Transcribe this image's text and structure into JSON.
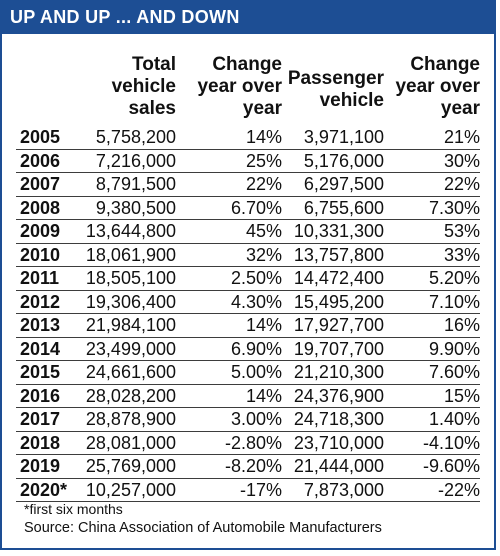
{
  "banner": {
    "title": "UP AND UP ... AND DOWN"
  },
  "colors": {
    "banner": "#1d4e94",
    "border": "#1d4e94"
  },
  "header": {
    "total_sales": "Total\nvehicle\nsales",
    "change1": "Change\nyear over\nyear",
    "passenger": "Passenger\nvehicle",
    "change2": "Change\nyear over\nyear"
  },
  "rows": [
    {
      "year": "2005",
      "total": "5,758,200",
      "change1": "14%",
      "passenger": "3,971,100",
      "change2": "21%"
    },
    {
      "year": "2006",
      "total": "7,216,000",
      "change1": "25%",
      "passenger": "5,176,000",
      "change2": "30%"
    },
    {
      "year": "2007",
      "total": "8,791,500",
      "change1": "22%",
      "passenger": "6,297,500",
      "change2": "22%"
    },
    {
      "year": "2008",
      "total": "9,380,500",
      "change1": "6.70%",
      "passenger": "6,755,600",
      "change2": "7.30%"
    },
    {
      "year": "2009",
      "total": "13,644,800",
      "change1": "45%",
      "passenger": "10,331,300",
      "change2": "53%"
    },
    {
      "year": "2010",
      "total": "18,061,900",
      "change1": "32%",
      "passenger": "13,757,800",
      "change2": "33%"
    },
    {
      "year": "2011",
      "total": "18,505,100",
      "change1": "2.50%",
      "passenger": "14,472,400",
      "change2": "5.20%"
    },
    {
      "year": "2012",
      "total": "19,306,400",
      "change1": "4.30%",
      "passenger": "15,495,200",
      "change2": "7.10%"
    },
    {
      "year": "2013",
      "total": "21,984,100",
      "change1": "14%",
      "passenger": "17,927,700",
      "change2": "16%"
    },
    {
      "year": "2014",
      "total": "23,499,000",
      "change1": "6.90%",
      "passenger": "19,707,700",
      "change2": "9.90%"
    },
    {
      "year": "2015",
      "total": "24,661,600",
      "change1": "5.00%",
      "passenger": "21,210,300",
      "change2": "7.60%"
    },
    {
      "year": "2016",
      "total": "28,028,200",
      "change1": "14%",
      "passenger": "24,376,900",
      "change2": "15%"
    },
    {
      "year": "2017",
      "total": "28,878,900",
      "change1": "3.00%",
      "passenger": "24,718,300",
      "change2": "1.40%"
    },
    {
      "year": "2018",
      "total": "28,081,000",
      "change1": "-2.80%",
      "passenger": "23,710,000",
      "change2": "-4.10%"
    },
    {
      "year": "2019",
      "total": "25,769,000",
      "change1": "-8.20%",
      "passenger": "21,444,000",
      "change2": "-9.60%"
    },
    {
      "year": "2020*",
      "total": "10,257,000",
      "change1": "-17%",
      "passenger": "7,873,000",
      "change2": "-22%"
    }
  ],
  "footnote": "*first six months",
  "source": "Source: China Association of Automobile Manufacturers"
}
